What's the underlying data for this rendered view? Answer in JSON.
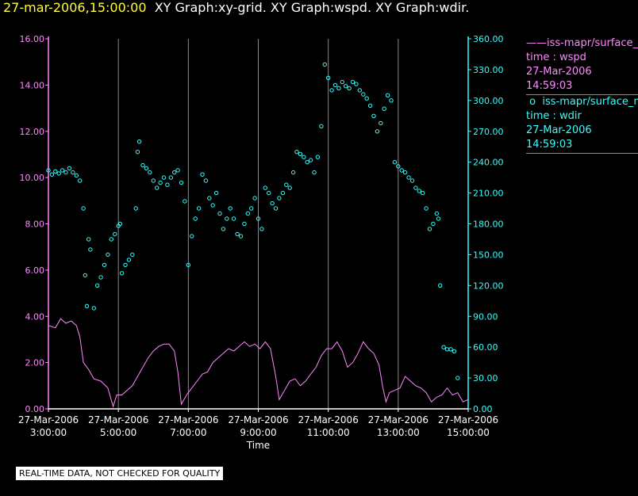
{
  "title": {
    "datetime": "27-mar-2006,15:00:00",
    "graphs": "XY Graph:xy-grid.  XY Graph:wspd.  XY Graph:wdir."
  },
  "legend": [
    {
      "marker": "——",
      "name": "iss-mapr/surface_mean",
      "line2": "time : wspd",
      "line3": "27-Mar-2006",
      "line4": "14:59:03",
      "color": "#ff88ff"
    },
    {
      "marker": "o",
      "name": "iss-mapr/surface_mean",
      "line2": "time : wdir",
      "line3": "27-Mar-2006",
      "line4": "14:59:03",
      "color": "#33ffff"
    }
  ],
  "disclaimer": "REAL-TIME DATA, NOT CHECKED FOR QUALITY",
  "chart_data": {
    "type": "line",
    "xlabel": "Time",
    "x_ticks": [
      {
        "date": "27-Mar-2006",
        "time": "3:00:00",
        "hour": 3
      },
      {
        "date": "27-Mar-2006",
        "time": "5:00:00",
        "hour": 5
      },
      {
        "date": "27-Mar-2006",
        "time": "7:00:00",
        "hour": 7
      },
      {
        "date": "27-Mar-2006",
        "time": "9:00:00",
        "hour": 9
      },
      {
        "date": "27-Mar-2006",
        "time": "11:00:00",
        "hour": 11
      },
      {
        "date": "27-Mar-2006",
        "time": "13:00:00",
        "hour": 13
      },
      {
        "date": "27-Mar-2006",
        "time": "15:00:00",
        "hour": 15
      }
    ],
    "xlim": [
      3,
      15
    ],
    "y_left": {
      "ticks": [
        "0.00",
        "2.00",
        "4.00",
        "6.00",
        "8.00",
        "10.00",
        "12.00",
        "14.00",
        "16.00"
      ],
      "lim": [
        0,
        16
      ],
      "color": "#ff88ff"
    },
    "y_right": {
      "ticks": [
        "0.00",
        "30.00",
        "60.00",
        "90.00",
        "120.00",
        "150.00",
        "180.00",
        "210.00",
        "240.00",
        "270.00",
        "300.00",
        "330.00",
        "360.00"
      ],
      "lim": [
        0,
        360
      ],
      "color": "#33ffff"
    },
    "grid": "vertical",
    "series": [
      {
        "axis": "left",
        "style": "line",
        "color": "#ff88ff",
        "points": [
          [
            3.0,
            3.6
          ],
          [
            3.2,
            3.5
          ],
          [
            3.35,
            3.9
          ],
          [
            3.5,
            3.7
          ],
          [
            3.65,
            3.8
          ],
          [
            3.8,
            3.6
          ],
          [
            3.9,
            3.1
          ],
          [
            4.0,
            2.0
          ],
          [
            4.15,
            1.7
          ],
          [
            4.3,
            1.3
          ],
          [
            4.5,
            1.2
          ],
          [
            4.7,
            0.9
          ],
          [
            4.85,
            0.1
          ],
          [
            4.95,
            0.6
          ],
          [
            5.1,
            0.6
          ],
          [
            5.25,
            0.8
          ],
          [
            5.4,
            1.0
          ],
          [
            5.55,
            1.4
          ],
          [
            5.7,
            1.8
          ],
          [
            5.85,
            2.2
          ],
          [
            6.0,
            2.5
          ],
          [
            6.15,
            2.7
          ],
          [
            6.3,
            2.8
          ],
          [
            6.45,
            2.8
          ],
          [
            6.6,
            2.5
          ],
          [
            6.7,
            1.6
          ],
          [
            6.8,
            0.2
          ],
          [
            6.95,
            0.6
          ],
          [
            7.1,
            0.9
          ],
          [
            7.25,
            1.2
          ],
          [
            7.4,
            1.5
          ],
          [
            7.55,
            1.6
          ],
          [
            7.7,
            2.0
          ],
          [
            7.85,
            2.2
          ],
          [
            8.0,
            2.4
          ],
          [
            8.15,
            2.6
          ],
          [
            8.3,
            2.5
          ],
          [
            8.45,
            2.7
          ],
          [
            8.6,
            2.9
          ],
          [
            8.75,
            2.7
          ],
          [
            8.9,
            2.8
          ],
          [
            9.05,
            2.6
          ],
          [
            9.2,
            2.9
          ],
          [
            9.35,
            2.6
          ],
          [
            9.5,
            1.4
          ],
          [
            9.6,
            0.4
          ],
          [
            9.75,
            0.8
          ],
          [
            9.9,
            1.2
          ],
          [
            10.05,
            1.3
          ],
          [
            10.2,
            1.0
          ],
          [
            10.35,
            1.2
          ],
          [
            10.5,
            1.5
          ],
          [
            10.65,
            1.8
          ],
          [
            10.8,
            2.3
          ],
          [
            10.95,
            2.6
          ],
          [
            11.1,
            2.6
          ],
          [
            11.25,
            2.9
          ],
          [
            11.4,
            2.5
          ],
          [
            11.55,
            1.8
          ],
          [
            11.7,
            2.0
          ],
          [
            11.85,
            2.4
          ],
          [
            12.0,
            2.9
          ],
          [
            12.15,
            2.6
          ],
          [
            12.3,
            2.4
          ],
          [
            12.45,
            1.9
          ],
          [
            12.55,
            1.0
          ],
          [
            12.65,
            0.3
          ],
          [
            12.75,
            0.7
          ],
          [
            12.9,
            0.8
          ],
          [
            13.05,
            0.9
          ],
          [
            13.2,
            1.4
          ],
          [
            13.35,
            1.2
          ],
          [
            13.5,
            1.0
          ],
          [
            13.65,
            0.9
          ],
          [
            13.8,
            0.7
          ],
          [
            13.95,
            0.3
          ],
          [
            14.1,
            0.5
          ],
          [
            14.25,
            0.6
          ],
          [
            14.4,
            0.9
          ],
          [
            14.55,
            0.6
          ],
          [
            14.7,
            0.7
          ],
          [
            14.85,
            0.3
          ],
          [
            15.0,
            0.4
          ]
        ]
      },
      {
        "axis": "right",
        "style": "circles",
        "color": "#33ffff",
        "points": [
          [
            3.0,
            232
          ],
          [
            3.1,
            228
          ],
          [
            3.2,
            231
          ],
          [
            3.3,
            229
          ],
          [
            3.4,
            232
          ],
          [
            3.5,
            230
          ],
          [
            3.6,
            234
          ],
          [
            3.7,
            230
          ],
          [
            3.8,
            227
          ],
          [
            3.9,
            222
          ],
          [
            4.0,
            195
          ],
          [
            4.05,
            130
          ],
          [
            4.1,
            100
          ],
          [
            4.15,
            165
          ],
          [
            4.2,
            155
          ],
          [
            4.3,
            98
          ],
          [
            4.4,
            120
          ],
          [
            4.5,
            128
          ],
          [
            4.6,
            140
          ],
          [
            4.7,
            150
          ],
          [
            4.8,
            165
          ],
          [
            4.9,
            170
          ],
          [
            5.0,
            178
          ],
          [
            5.05,
            180
          ],
          [
            5.1,
            132
          ],
          [
            5.2,
            140
          ],
          [
            5.3,
            145
          ],
          [
            5.4,
            150
          ],
          [
            5.5,
            195
          ],
          [
            5.55,
            250
          ],
          [
            5.6,
            260
          ],
          [
            5.7,
            237
          ],
          [
            5.8,
            234
          ],
          [
            5.9,
            230
          ],
          [
            6.0,
            222
          ],
          [
            6.1,
            215
          ],
          [
            6.2,
            220
          ],
          [
            6.3,
            225
          ],
          [
            6.4,
            218
          ],
          [
            6.5,
            225
          ],
          [
            6.6,
            230
          ],
          [
            6.7,
            232
          ],
          [
            6.8,
            220
          ],
          [
            6.9,
            202
          ],
          [
            7.0,
            140
          ],
          [
            7.1,
            168
          ],
          [
            7.2,
            185
          ],
          [
            7.3,
            195
          ],
          [
            7.4,
            228
          ],
          [
            7.5,
            222
          ],
          [
            7.6,
            205
          ],
          [
            7.7,
            198
          ],
          [
            7.8,
            210
          ],
          [
            7.9,
            190
          ],
          [
            8.0,
            175
          ],
          [
            8.1,
            185
          ],
          [
            8.2,
            195
          ],
          [
            8.3,
            185
          ],
          [
            8.4,
            170
          ],
          [
            8.5,
            168
          ],
          [
            8.6,
            180
          ],
          [
            8.7,
            190
          ],
          [
            8.8,
            195
          ],
          [
            8.9,
            205
          ],
          [
            9.0,
            185
          ],
          [
            9.1,
            175
          ],
          [
            9.2,
            215
          ],
          [
            9.3,
            210
          ],
          [
            9.4,
            200
          ],
          [
            9.5,
            195
          ],
          [
            9.6,
            205
          ],
          [
            9.7,
            210
          ],
          [
            9.8,
            218
          ],
          [
            9.9,
            215
          ],
          [
            10.0,
            230
          ],
          [
            10.1,
            250
          ],
          [
            10.2,
            248
          ],
          [
            10.3,
            245
          ],
          [
            10.4,
            240
          ],
          [
            10.5,
            242
          ],
          [
            10.6,
            230
          ],
          [
            10.7,
            245
          ],
          [
            10.8,
            275
          ],
          [
            10.9,
            335
          ],
          [
            11.0,
            322
          ],
          [
            11.1,
            310
          ],
          [
            11.2,
            315
          ],
          [
            11.3,
            312
          ],
          [
            11.4,
            318
          ],
          [
            11.5,
            314
          ],
          [
            11.6,
            312
          ],
          [
            11.7,
            318
          ],
          [
            11.8,
            316
          ],
          [
            11.9,
            310
          ],
          [
            12.0,
            306
          ],
          [
            12.1,
            302
          ],
          [
            12.2,
            295
          ],
          [
            12.3,
            285
          ],
          [
            12.4,
            270
          ],
          [
            12.5,
            278
          ],
          [
            12.6,
            292
          ],
          [
            12.7,
            305
          ],
          [
            12.8,
            300
          ],
          [
            12.9,
            240
          ],
          [
            13.0,
            236
          ],
          [
            13.1,
            232
          ],
          [
            13.2,
            230
          ],
          [
            13.3,
            225
          ],
          [
            13.4,
            222
          ],
          [
            13.5,
            215
          ],
          [
            13.6,
            212
          ],
          [
            13.7,
            210
          ],
          [
            13.8,
            195
          ],
          [
            13.9,
            175
          ],
          [
            14.0,
            180
          ],
          [
            14.1,
            190
          ],
          [
            14.15,
            185
          ],
          [
            14.2,
            120
          ],
          [
            14.3,
            60
          ],
          [
            14.4,
            58
          ],
          [
            14.5,
            58
          ],
          [
            14.6,
            56
          ],
          [
            14.7,
            30
          ]
        ]
      }
    ]
  }
}
